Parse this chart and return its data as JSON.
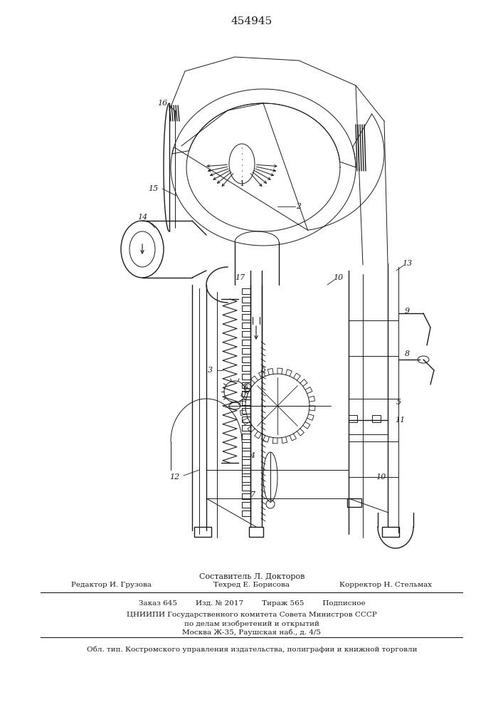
{
  "patent_number": "454945",
  "background_color": "#ffffff",
  "footer": {
    "compiler": "Составитель Л. Докторов",
    "editor_left": "Редактор И. Грузова",
    "editor_center": "Техред Е. Борисова",
    "editor_right": "Корректор Н. Стельмах",
    "info1": "Заказ 645        Изд. № 2017        Тираж 565        Подписное",
    "info2": "ЦНИИПИ Государственного комитета Совета Министров СССР",
    "info3": "по делам изобретений и открытий",
    "info4": "Москва Ж-35, Раушская наб., д. 4/5",
    "bottom": "Обл. тип. Костромского управления издательства, полиграфии и книжной торговли"
  }
}
